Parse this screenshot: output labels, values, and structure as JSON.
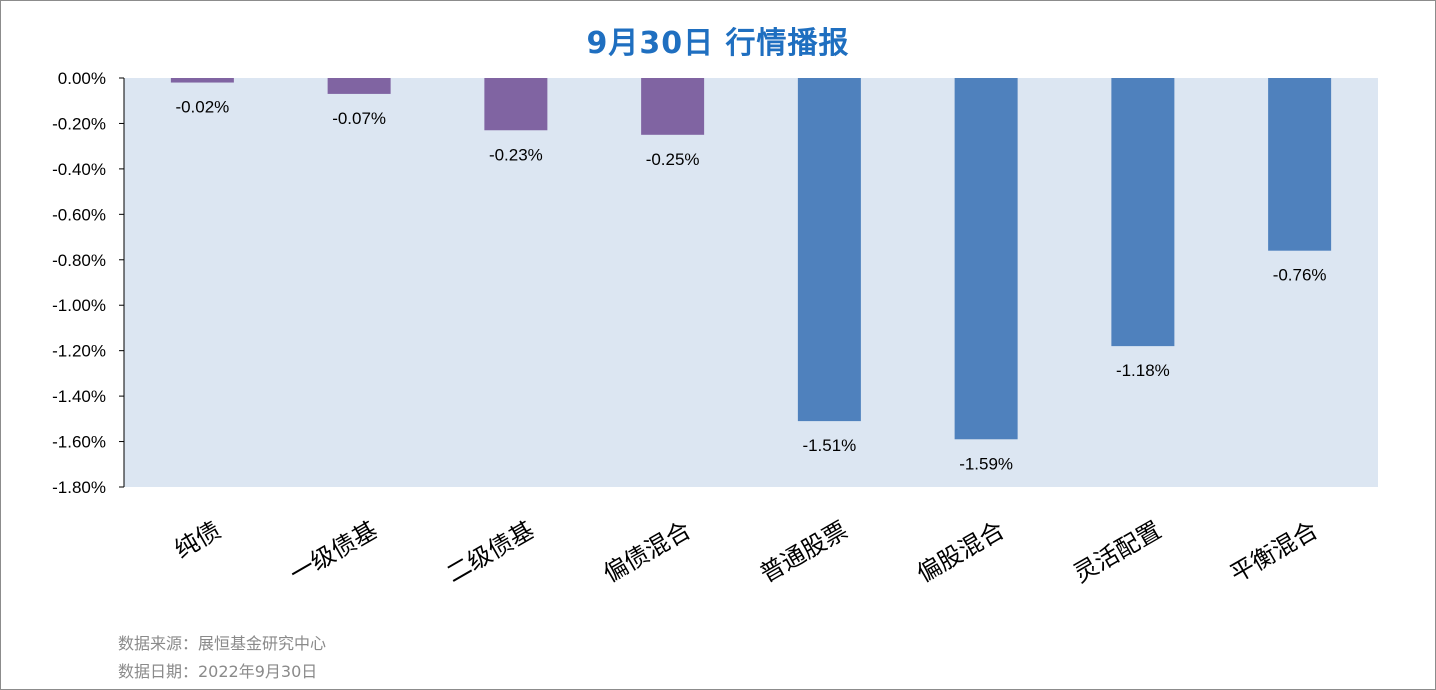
{
  "title": "9月30日  行情播报",
  "footer": {
    "source": "数据来源：展恒基金研究中心",
    "date": "数据日期：2022年9月30日"
  },
  "colors": {
    "plot_background": "#dce6f2",
    "bond_bar": "#8064a2",
    "equity_bar": "#4f81bd",
    "title": "#1f6fc0",
    "footer_text": "#8a8a8a"
  },
  "chart_data": {
    "type": "bar",
    "categories": [
      "纯债",
      "一级债基",
      "二级债基",
      "偏债混合",
      "普通股票",
      "偏股混合",
      "灵活配置",
      "平衡混合"
    ],
    "values": [
      -0.02,
      -0.07,
      -0.23,
      -0.25,
      -1.51,
      -1.59,
      -1.18,
      -0.76
    ],
    "data_labels": [
      "-0.02%",
      "-0.07%",
      "-0.23%",
      "-0.25%",
      "-1.51%",
      "-1.59%",
      "-1.18%",
      "-0.76%"
    ],
    "bar_groups": [
      "bond",
      "bond",
      "bond",
      "bond",
      "equity",
      "equity",
      "equity",
      "equity"
    ],
    "ylim": [
      -1.8,
      0
    ],
    "yticks": [
      0,
      -0.2,
      -0.4,
      -0.6,
      -0.8,
      -1.0,
      -1.2,
      -1.4,
      -1.6,
      -1.8
    ],
    "ytick_labels": [
      "0.00%",
      "-0.20%",
      "-0.40%",
      "-0.60%",
      "-0.80%",
      "-1.00%",
      "-1.20%",
      "-1.40%",
      "-1.60%",
      "-1.80%"
    ],
    "grid": false,
    "legend": "none"
  }
}
